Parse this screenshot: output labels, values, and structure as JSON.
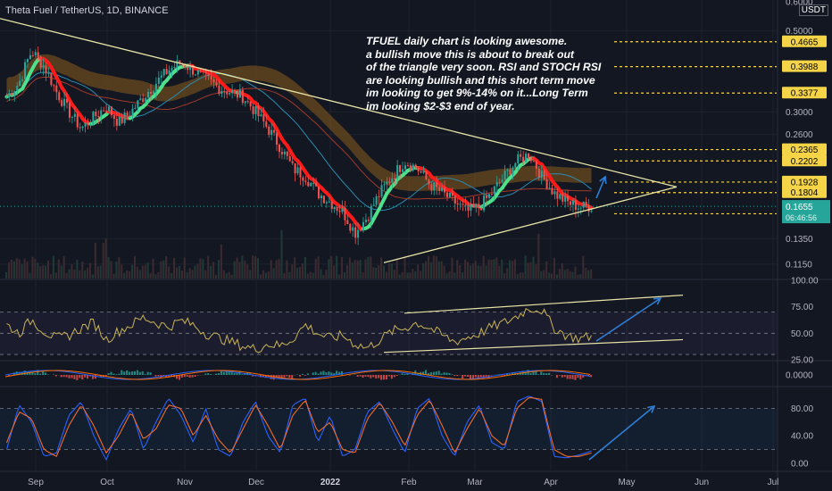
{
  "header": {
    "symbol": "Theta Fuel / TetherUS, 1D, BINANCE",
    "currency": "USDT"
  },
  "annotation": {
    "lines": [
      "TFUEL daily chart is looking awesome.",
      "a bullish move this is about to break out",
      "of the triangle very soon. RSI and STOCH RSI",
      "are looking bullish and this short term move",
      "im looking to get 9%-14% on it...Long Term",
      "im looking $2-$3 end of year."
    ]
  },
  "colors": {
    "background": "#131722",
    "up": "#26a69a",
    "down": "#ef5350",
    "level_line": "#f5d547",
    "trendline": "#e8e4a6",
    "rsi": "#c9b458",
    "stoch_k": "#2962ff",
    "stoch_d": "#ef6c2c",
    "arrow": "#2f7fd6"
  },
  "chart_data": [
    {
      "type": "candlestick",
      "title": "Theta Fuel / TetherUS, 1D, BINANCE",
      "x_ticks": [
        "Sep",
        "Oct",
        "Nov",
        "Dec",
        "2022",
        "Feb",
        "Mar",
        "Apr",
        "May",
        "Jun",
        "Jul"
      ],
      "y_scale": "log",
      "y_ticks": [
        "0.6000",
        "0.5000",
        "0.3000",
        "0.2600",
        "0.1350",
        "0.1150"
      ],
      "ylim": [
        0.105,
        0.6
      ],
      "last_price": "0.1655",
      "last_price_secondary": "06:46:56",
      "levels": [
        {
          "label": "0.4665",
          "value": 0.4665
        },
        {
          "label": "0.3988",
          "value": 0.3988
        },
        {
          "label": "0.3377",
          "value": 0.3377
        },
        {
          "label": "0.2365",
          "value": 0.2365
        },
        {
          "label": "0.2202",
          "value": 0.2202
        },
        {
          "label": "0.1928",
          "value": 0.1928
        },
        {
          "label": "0.1804",
          "value": 0.1804
        },
        {
          "label": "0.1579",
          "value": 0.1579
        }
      ],
      "price_path": [
        0.33,
        0.36,
        0.44,
        0.4,
        0.34,
        0.3,
        0.27,
        0.29,
        0.31,
        0.28,
        0.3,
        0.33,
        0.36,
        0.39,
        0.41,
        0.39,
        0.37,
        0.35,
        0.34,
        0.33,
        0.3,
        0.27,
        0.24,
        0.21,
        0.2,
        0.18,
        0.17,
        0.16,
        0.14,
        0.155,
        0.18,
        0.2,
        0.22,
        0.21,
        0.19,
        0.18,
        0.17,
        0.16,
        0.165,
        0.18,
        0.2,
        0.22,
        0.23,
        0.2,
        0.18,
        0.17,
        0.165,
        0.1655
      ]
    },
    {
      "type": "line",
      "title": "RSI",
      "y_ticks": [
        "100.00",
        "75.00",
        "50.00",
        "25.00"
      ],
      "ylim": [
        25,
        100
      ],
      "values": [
        58,
        50,
        63,
        52,
        45,
        48,
        55,
        60,
        44,
        52,
        58,
        65,
        60,
        56,
        62,
        58,
        50,
        46,
        42,
        38,
        35,
        40,
        38,
        45,
        58,
        50,
        45,
        48,
        40,
        36,
        44,
        52,
        55,
        60,
        55,
        48,
        42,
        46,
        50,
        56,
        60,
        66,
        74,
        72,
        55,
        48,
        45,
        47
      ]
    },
    {
      "type": "histogram",
      "title": "MACD",
      "y_ticks": [
        "0.0000"
      ]
    },
    {
      "type": "line",
      "title": "Stoch RSI",
      "y_ticks": [
        "80.00",
        "40.00",
        "0.00"
      ],
      "ylim": [
        0,
        100
      ],
      "series": [
        {
          "values": [
            20,
            85,
            60,
            10,
            15,
            70,
            90,
            40,
            5,
            50,
            80,
            20,
            60,
            95,
            70,
            30,
            80,
            20,
            10,
            60,
            90,
            40,
            15,
            85,
            95,
            30,
            70,
            10,
            20,
            75,
            90,
            50,
            15,
            80,
            95,
            40,
            10,
            60,
            85,
            30,
            20,
            90,
            98,
            90,
            10,
            8,
            12,
            18
          ]
        },
        {
          "values": [
            30,
            75,
            65,
            20,
            10,
            55,
            85,
            55,
            15,
            40,
            75,
            35,
            50,
            85,
            80,
            40,
            70,
            35,
            15,
            50,
            85,
            55,
            20,
            70,
            92,
            45,
            60,
            20,
            15,
            65,
            88,
            60,
            25,
            70,
            92,
            55,
            15,
            50,
            80,
            40,
            25,
            80,
            96,
            93,
            20,
            10,
            10,
            15
          ]
        }
      ]
    }
  ]
}
